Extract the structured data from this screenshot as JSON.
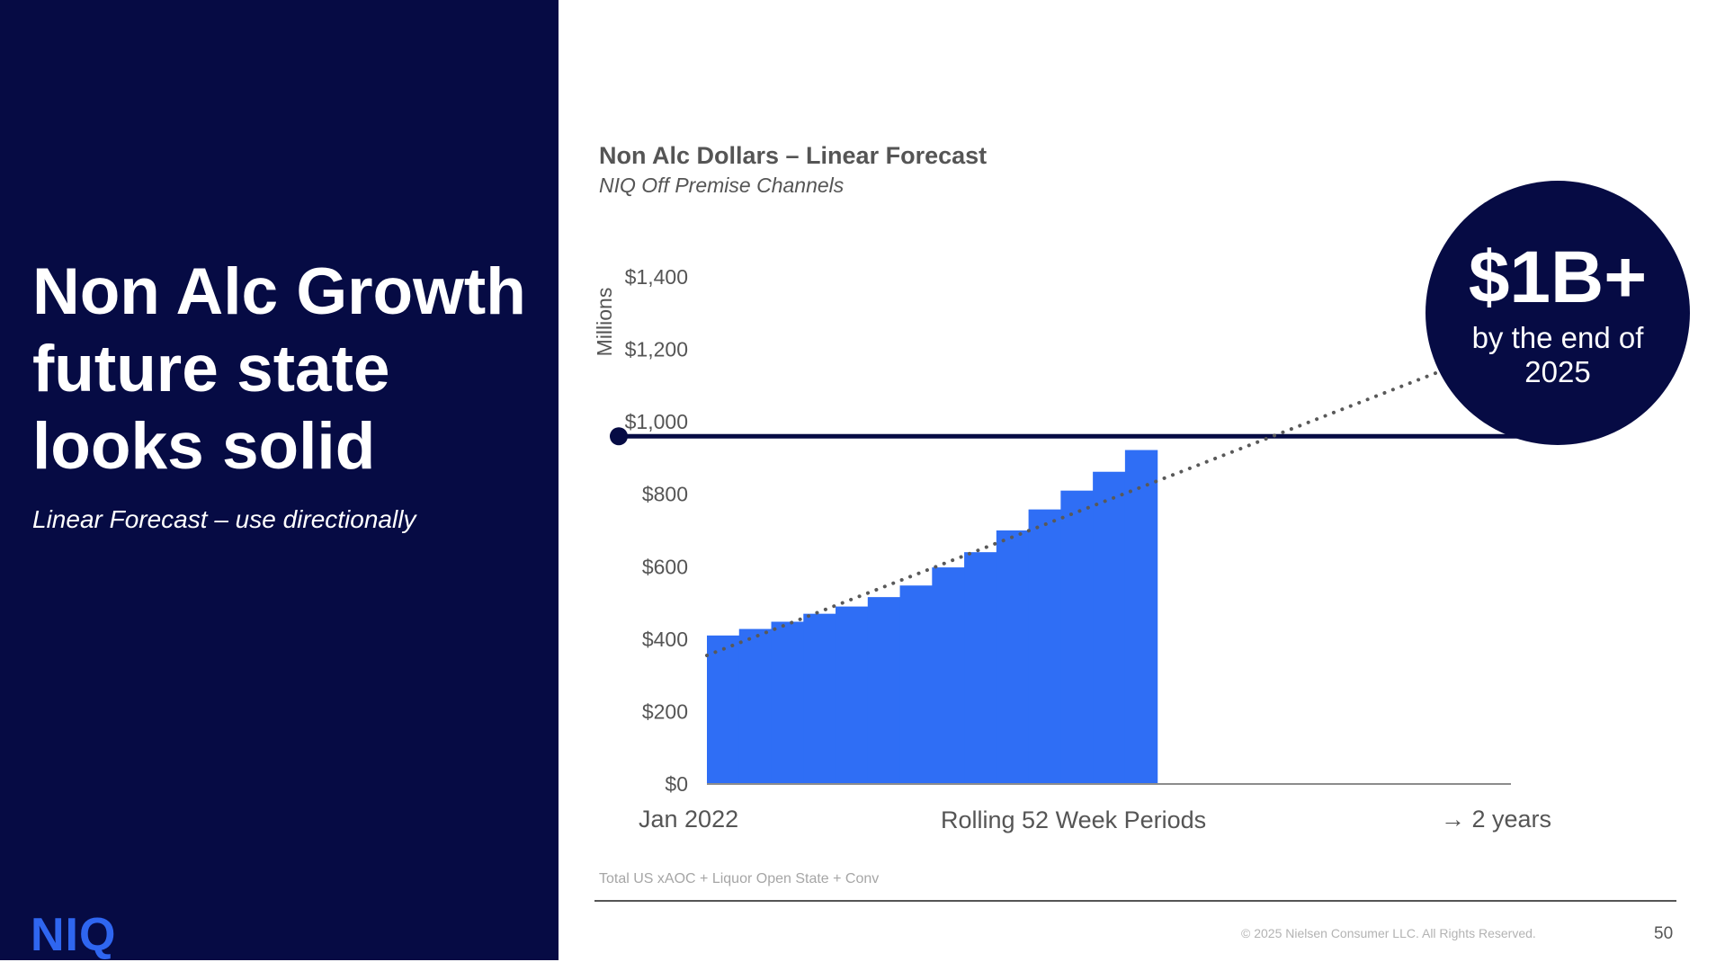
{
  "slide": {
    "headline": "Non Alc Growth future state looks solid",
    "subhead": "Linear Forecast – use directionally",
    "logo": "NIQ",
    "source": "Total US xAOC + Liquor Open State + Conv",
    "copyright": "© 2025 Nielsen Consumer LLC. All Rights Reserved.",
    "page_number": "50"
  },
  "badge": {
    "value": "$1B+",
    "text": "by the end of 2025"
  },
  "colors": {
    "navy": "#060b44",
    "bar_blue": "#2f6ef5",
    "trend_dots": "#595959",
    "axis_text": "#555555"
  },
  "chart_data": {
    "type": "area",
    "title": "Non Alc Dollars – Linear Forecast",
    "subtitle": "NIQ Off Premise Channels",
    "ylabel": "Millions",
    "xlabel": "Rolling 52 Week Periods",
    "x_start_label": "Jan 2022",
    "x_end_label": "→ 2 years",
    "ylim": [
      0,
      1400
    ],
    "y_ticks": [
      "$0",
      "$200",
      "$400",
      "$600",
      "$800",
      "$1,000",
      "$1,200",
      "$1,400"
    ],
    "y_tick_values": [
      0,
      200,
      400,
      600,
      800,
      1000,
      1200,
      1400
    ],
    "x_range": [
      0,
      100
    ],
    "series": [
      {
        "values": [
          {
            "x": 0,
            "y": 410
          },
          {
            "x": 4,
            "y": 428
          },
          {
            "x": 8,
            "y": 448
          },
          {
            "x": 12,
            "y": 470
          },
          {
            "x": 16,
            "y": 490
          },
          {
            "x": 20,
            "y": 516
          },
          {
            "x": 24,
            "y": 548
          },
          {
            "x": 28,
            "y": 598
          },
          {
            "x": 32,
            "y": 640
          },
          {
            "x": 36,
            "y": 700
          },
          {
            "x": 40,
            "y": 758
          },
          {
            "x": 44,
            "y": 810
          },
          {
            "x": 48,
            "y": 862
          },
          {
            "x": 52,
            "y": 922
          }
        ]
      }
    ],
    "trendline": {
      "style": "dotted",
      "points": [
        {
          "x": 0,
          "y": 355
        },
        {
          "x": 100,
          "y": 1215
        }
      ]
    },
    "reference_line": {
      "y": 960,
      "marker": "circle at left end"
    },
    "grid": false,
    "legend": "none"
  }
}
